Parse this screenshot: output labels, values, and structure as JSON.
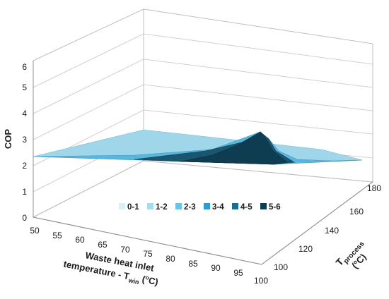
{
  "chart_data": {
    "type": "surface",
    "zlabel": "COP",
    "zlim": [
      0,
      6
    ],
    "z_ticks": [
      "0",
      "1",
      "2",
      "3",
      "4",
      "5",
      "6"
    ],
    "xlabel_lines": [
      "Waste heat inlet",
      "temperature - T",
      "win",
      " (",
      "o",
      "C)"
    ],
    "ylabel_lines": [
      "T",
      "process",
      "(",
      "o",
      "C)"
    ],
    "x_ticks": [
      "50",
      "55",
      "60",
      "65",
      "70",
      "75",
      "80",
      "85",
      "90",
      "95",
      "100"
    ],
    "y_ticks": [
      "100",
      "120",
      "140",
      "160",
      "180"
    ],
    "legend": [
      {
        "label": "0-1",
        "color": "#d9f0f7"
      },
      {
        "label": "1-2",
        "color": "#a6dcee"
      },
      {
        "label": "2-3",
        "color": "#6cc4e4"
      },
      {
        "label": "3-4",
        "color": "#2e9ccc"
      },
      {
        "label": "4-5",
        "color": "#1b6e93"
      },
      {
        "label": "5-6",
        "color": "#0e3d52"
      }
    ],
    "approx_peak": {
      "x": 90,
      "y": 180,
      "cop": 3.2
    },
    "approx_corner_values": {
      "x50_y100": 2.4,
      "x100_y100": 2.3,
      "x50_y180": 2.45,
      "x100_y180": 2.3
    }
  }
}
